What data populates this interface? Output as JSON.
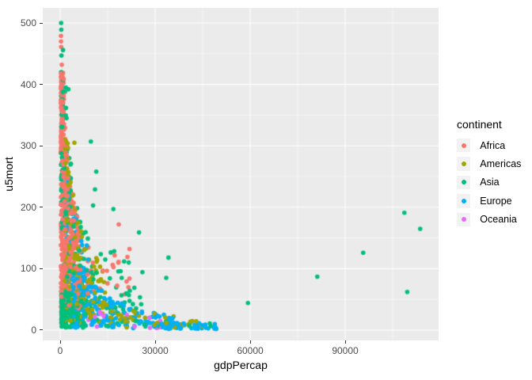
{
  "chart_data": {
    "type": "scatter",
    "title": "",
    "xlabel": "gdpPercap",
    "ylabel": "u5mort",
    "xlim": [
      -5500,
      119500
    ],
    "ylim": [
      -16.8,
      524.5
    ],
    "x_ticks": [
      0,
      30000,
      60000,
      90000
    ],
    "y_ticks": [
      0,
      100,
      200,
      300,
      400,
      500
    ],
    "grid": true,
    "panel_bg": "#EBEBEB",
    "grid_major_color": "#FFFFFF",
    "grid_minor_color": "#FFFFFF",
    "tick_label_color": "#4D4D4D",
    "tick_mark_color": "#333333",
    "axis_title_color": "#000000",
    "point_radius": 2.8,
    "seed": 12345,
    "legend": {
      "title": "continent",
      "position": "right",
      "key_bg": "#F2F2F2",
      "entries": [
        {
          "label": "Africa",
          "color": "#F8766D"
        },
        {
          "label": "Americas",
          "color": "#A3A500"
        },
        {
          "label": "Asia",
          "color": "#00BF7D"
        },
        {
          "label": "Europe",
          "color": "#00B0F6"
        },
        {
          "label": "Oceania",
          "color": "#E76BF3"
        }
      ]
    },
    "series": [
      {
        "name": "Africa",
        "color": "#F8766D",
        "clusters": [
          {
            "n": 420,
            "gdp": [
              250,
              6500
            ],
            "u5": [
              35,
              420
            ],
            "pivot": 900,
            "pow": 0.45
          },
          {
            "n": 30,
            "gdp": [
              300,
              1200
            ],
            "u5": [
              330,
              422
            ],
            "pivot": 999999,
            "pow": 0
          },
          {
            "n": 22,
            "gdp": [
              6000,
              22500
            ],
            "u5": [
              55,
              180
            ],
            "pivot": 8000,
            "pow": 0.5
          }
        ],
        "points": [
          [
            260,
            479
          ],
          [
            280,
            470
          ],
          [
            300,
            461
          ],
          [
            500,
            432
          ],
          [
            420,
            417
          ],
          [
            18500,
            172
          ],
          [
            21900,
            132
          ],
          [
            21250,
            119
          ],
          [
            21900,
            84
          ]
        ]
      },
      {
        "name": "Americas",
        "color": "#A3A500",
        "clusters": [
          {
            "n": 185,
            "gdp": [
              1400,
              15000
            ],
            "u5": [
              12,
              320
            ],
            "pivot": 2300,
            "pow": 0.62
          },
          {
            "n": 40,
            "gdp": [
              15000,
              45500
            ],
            "u5": [
              4,
              35
            ],
            "pivot": 20000,
            "pow": 0.7
          }
        ],
        "points": [
          [
            4500,
            305
          ],
          [
            38500,
            7
          ],
          [
            42800,
            6
          ]
        ]
      },
      {
        "name": "Asia",
        "color": "#00BF7D",
        "clusters": [
          {
            "n": 70,
            "gdp": [
              300,
              3500
            ],
            "u5": [
              140,
              430
            ],
            "pivot": 1200,
            "pow": 0.35
          },
          {
            "n": 110,
            "gdp": [
              1200,
              26000
            ],
            "u5": [
              35,
              230
            ],
            "pivot": 4000,
            "pow": 0.4
          },
          {
            "n": 185,
            "gdp": [
              350,
              7000
            ],
            "u5": [
              4,
              65
            ],
            "pivot": 999999,
            "pow": 0
          },
          {
            "n": 35,
            "gdp": [
              7000,
              50000
            ],
            "u5": [
              3,
              45
            ],
            "pivot": 12000,
            "pow": 0.5
          }
        ],
        "points": [
          [
            300,
            500
          ],
          [
            350,
            489
          ],
          [
            400,
            447
          ],
          [
            900,
            456
          ],
          [
            1800,
            395
          ],
          [
            2600,
            392
          ],
          [
            9700,
            307
          ],
          [
            11400,
            258
          ],
          [
            11000,
            229
          ],
          [
            10400,
            203
          ],
          [
            16800,
            197
          ],
          [
            24900,
            159
          ],
          [
            33500,
            85
          ],
          [
            34200,
            118
          ],
          [
            59300,
            44
          ],
          [
            81200,
            87
          ],
          [
            95700,
            126
          ],
          [
            108700,
            191
          ],
          [
            113700,
            165
          ],
          [
            109600,
            62
          ],
          [
            41000,
            11
          ],
          [
            47250,
            11
          ]
        ]
      },
      {
        "name": "Europe",
        "color": "#00B0F6",
        "clusters": [
          {
            "n": 45,
            "gdp": [
              1300,
              9000
            ],
            "u5": [
              55,
              260
            ],
            "pivot": 2500,
            "pow": 0.5
          },
          {
            "n": 195,
            "gdp": [
              3500,
              36000
            ],
            "u5": [
              3,
              95
            ],
            "pivot": 9000,
            "pow": 1.0
          },
          {
            "n": 40,
            "gdp": [
              28000,
              49500
            ],
            "u5": [
              2,
              12
            ],
            "pivot": 999999,
            "pow": 0
          }
        ],
        "points": [
          [
            650,
            297
          ],
          [
            900,
            260
          ],
          [
            1500,
            241
          ],
          [
            44750,
            3
          ],
          [
            49300,
            2
          ]
        ]
      },
      {
        "name": "Oceania",
        "color": "#E76BF3",
        "clusters": [
          {
            "n": 14,
            "gdp": [
              8500,
              34000
            ],
            "u5": [
              3,
              28
            ],
            "pivot": 20000,
            "pow": 0.5
          }
        ],
        "points": [
          [
            11500,
            37
          ],
          [
            12500,
            30
          ],
          [
            14000,
            22
          ]
        ]
      }
    ]
  }
}
